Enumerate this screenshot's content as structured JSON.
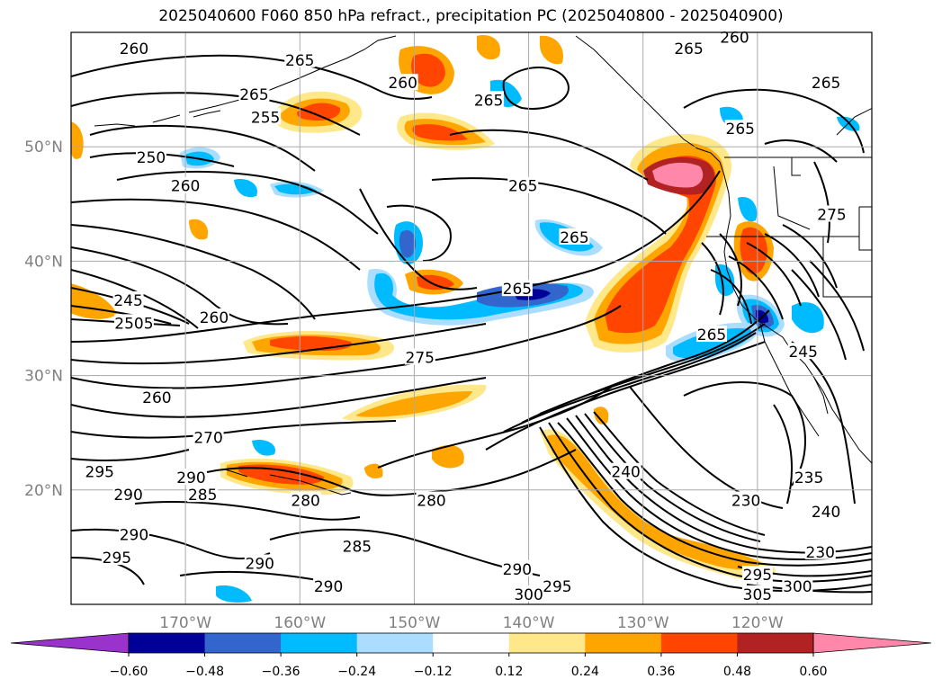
{
  "title": "2025040600 F060 850 hPa refract., precipitation PC (2025040800 - 2025040900)",
  "map": {
    "lon_range": [
      -180,
      -110
    ],
    "lat_range": [
      10,
      60
    ],
    "lon_ticks": [
      {
        "value": -170,
        "label": "170°W"
      },
      {
        "value": -160,
        "label": "160°W"
      },
      {
        "value": -150,
        "label": "150°W"
      },
      {
        "value": -140,
        "label": "140°W"
      },
      {
        "value": -130,
        "label": "130°W"
      },
      {
        "value": -120,
        "label": "120°W"
      }
    ],
    "lat_ticks": [
      {
        "value": 20,
        "label": "20°N"
      },
      {
        "value": 30,
        "label": "30°N"
      },
      {
        "value": 40,
        "label": "40°N"
      },
      {
        "value": 50,
        "label": "50°N"
      }
    ],
    "grid": true,
    "coastlines": true
  },
  "colorbar": {
    "orientation": "horizontal",
    "extend": "both",
    "levels": [
      -0.6,
      -0.48,
      -0.36,
      -0.24,
      -0.12,
      0.12,
      0.24,
      0.36,
      0.48,
      0.6
    ],
    "tick_labels": [
      "−0.60",
      "−0.48",
      "−0.36",
      "−0.24",
      "−0.12",
      "0.12",
      "0.24",
      "0.36",
      "0.48",
      "0.60"
    ],
    "colors": [
      "#9933cc",
      "#000099",
      "#3366cc",
      "#00bbff",
      "#aaddff",
      "#ffffff",
      "#ffe88a",
      "#ffa500",
      "#ff4500",
      "#b22222",
      "#ff88aa"
    ]
  },
  "contour_labels": [
    {
      "text": "260",
      "lon": -174.5,
      "lat": 58.5
    },
    {
      "text": "265",
      "lon": -160.0,
      "lat": 57.5
    },
    {
      "text": "265",
      "lon": -164.0,
      "lat": 54.5
    },
    {
      "text": "255",
      "lon": -163.0,
      "lat": 52.5
    },
    {
      "text": "260",
      "lon": -151.0,
      "lat": 55.5
    },
    {
      "text": "250",
      "lon": -173.0,
      "lat": 49.0
    },
    {
      "text": "260",
      "lon": -170.0,
      "lat": 46.5
    },
    {
      "text": "265",
      "lon": -143.5,
      "lat": 54.0
    },
    {
      "text": "265",
      "lon": -126.0,
      "lat": 58.5
    },
    {
      "text": "260",
      "lon": -122.0,
      "lat": 59.5
    },
    {
      "text": "265",
      "lon": -114.0,
      "lat": 55.5
    },
    {
      "text": "265",
      "lon": -121.5,
      "lat": 51.5
    },
    {
      "text": "265",
      "lon": -140.5,
      "lat": 46.5
    },
    {
      "text": "265",
      "lon": -136.0,
      "lat": 42.0
    },
    {
      "text": "275",
      "lon": -113.5,
      "lat": 44.0
    },
    {
      "text": "265",
      "lon": -141.0,
      "lat": 37.5
    },
    {
      "text": "245",
      "lon": -175.0,
      "lat": 36.5
    },
    {
      "text": "2505",
      "lon": -174.5,
      "lat": 34.5
    },
    {
      "text": "260",
      "lon": -167.5,
      "lat": 35.0
    },
    {
      "text": "275",
      "lon": -149.5,
      "lat": 31.5
    },
    {
      "text": "265",
      "lon": -124.0,
      "lat": 33.5
    },
    {
      "text": "245",
      "lon": -116.0,
      "lat": 32.0
    },
    {
      "text": "260",
      "lon": -172.5,
      "lat": 28.0
    },
    {
      "text": "270",
      "lon": -168.0,
      "lat": 24.5
    },
    {
      "text": "295",
      "lon": -177.5,
      "lat": 21.5
    },
    {
      "text": "290",
      "lon": -175.0,
      "lat": 19.5
    },
    {
      "text": "290",
      "lon": -169.5,
      "lat": 21.0
    },
    {
      "text": "285",
      "lon": -168.5,
      "lat": 19.5
    },
    {
      "text": "280",
      "lon": -159.5,
      "lat": 19.0
    },
    {
      "text": "280",
      "lon": -148.5,
      "lat": 19.0
    },
    {
      "text": "240",
      "lon": -131.5,
      "lat": 21.5
    },
    {
      "text": "230",
      "lon": -121.0,
      "lat": 19.0
    },
    {
      "text": "235",
      "lon": -115.5,
      "lat": 21.0
    },
    {
      "text": "240",
      "lon": -114.0,
      "lat": 18.0
    },
    {
      "text": "230",
      "lon": -114.5,
      "lat": 14.5
    },
    {
      "text": "290",
      "lon": -174.5,
      "lat": 16.0
    },
    {
      "text": "295",
      "lon": -176.0,
      "lat": 14.0
    },
    {
      "text": "290",
      "lon": -163.5,
      "lat": 13.5
    },
    {
      "text": "285",
      "lon": -155.0,
      "lat": 15.0
    },
    {
      "text": "290",
      "lon": -141.0,
      "lat": 13.0
    },
    {
      "text": "295",
      "lon": -137.5,
      "lat": 11.5
    },
    {
      "text": "300",
      "lon": -140.0,
      "lat": 10.8
    },
    {
      "text": "290",
      "lon": -157.5,
      "lat": 11.5
    },
    {
      "text": "305",
      "lon": -120.0,
      "lat": 10.8
    },
    {
      "text": "300",
      "lon": -116.5,
      "lat": 11.5
    },
    {
      "text": "295",
      "lon": -120.0,
      "lat": 12.5
    }
  ]
}
